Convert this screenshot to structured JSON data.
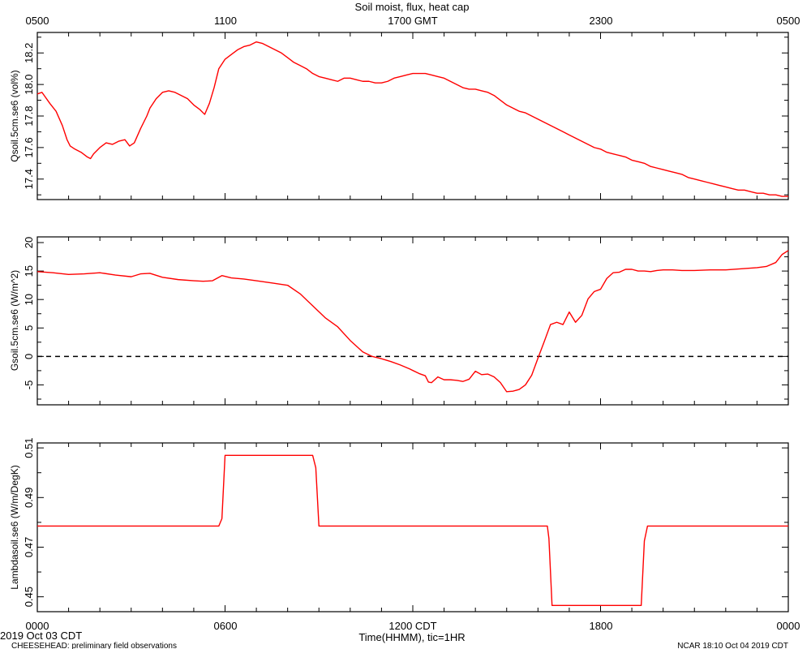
{
  "title": "Soil moist, flux, heat cap",
  "top_axis": {
    "tick_labels": [
      "0500",
      "1100",
      "1700 GMT",
      "2300",
      "0500"
    ],
    "tick_hours": [
      0,
      6,
      12,
      18,
      24
    ]
  },
  "bottom_axis": {
    "tick_labels": [
      "0000",
      "0600",
      "1200 CDT",
      "1800",
      "0000"
    ],
    "tick_hours": [
      0,
      6,
      12,
      18,
      24
    ],
    "label": "Time(HHMM), tic=1HR"
  },
  "footer": {
    "date": "2019 Oct 03 CDT",
    "project": "CHEESEHEAD: preliminary field observations",
    "stamp": "NCAR 18:10 Oct 04 2019 CDT"
  },
  "colors": {
    "series": "#ff0000",
    "axes": "#000000",
    "zero_line": "#000000"
  },
  "chart_data": [
    {
      "type": "line",
      "ylabel": "Qsoil.5cm.se6 (vol%)",
      "xlim": [
        0,
        24
      ],
      "ylim": [
        17.27,
        18.33
      ],
      "yticks": [
        17.4,
        17.6,
        17.8,
        18.0,
        18.2
      ],
      "ytick_labels": [
        "17.4",
        "17.6",
        "17.8",
        "18.0",
        "18.2"
      ],
      "series": [
        {
          "x": [
            0,
            0.15,
            0.4,
            0.6,
            0.8,
            0.95,
            1.05,
            1.2,
            1.4,
            1.6,
            1.7,
            1.8,
            2.0,
            2.2,
            2.4,
            2.6,
            2.8,
            2.95,
            3.1,
            3.3,
            3.5,
            3.6,
            3.8,
            4.0,
            4.2,
            4.4,
            4.6,
            4.8,
            5.0,
            5.2,
            5.35,
            5.5,
            5.65,
            5.8,
            6.0,
            6.2,
            6.4,
            6.6,
            6.8,
            7.0,
            7.2,
            7.4,
            7.6,
            7.8,
            8.0,
            8.2,
            8.4,
            8.6,
            8.8,
            9.0,
            9.2,
            9.4,
            9.6,
            9.8,
            10.0,
            10.2,
            10.4,
            10.6,
            10.8,
            11.0,
            11.2,
            11.4,
            11.6,
            11.8,
            12.0,
            12.2,
            12.4,
            12.6,
            12.8,
            13.0,
            13.2,
            13.4,
            13.6,
            13.8,
            14.0,
            14.2,
            14.4,
            14.6,
            14.8,
            15.0,
            15.2,
            15.4,
            15.6,
            15.8,
            16.0,
            16.2,
            16.4,
            16.6,
            16.8,
            17.0,
            17.2,
            17.4,
            17.6,
            17.8,
            18.0,
            18.2,
            18.4,
            18.6,
            18.8,
            19.0,
            19.2,
            19.4,
            19.6,
            19.8,
            20.0,
            20.2,
            20.4,
            20.6,
            20.8,
            21.0,
            21.2,
            21.4,
            21.6,
            21.8,
            22.0,
            22.2,
            22.4,
            22.6,
            22.8,
            23.0,
            23.2,
            23.4,
            23.6,
            23.8,
            24.0
          ],
          "values": [
            17.94,
            17.95,
            17.88,
            17.83,
            17.74,
            17.65,
            17.61,
            17.59,
            17.57,
            17.54,
            17.53,
            17.56,
            17.6,
            17.63,
            17.62,
            17.64,
            17.65,
            17.61,
            17.63,
            17.72,
            17.8,
            17.85,
            17.91,
            17.95,
            17.96,
            17.95,
            17.93,
            17.91,
            17.87,
            17.84,
            17.81,
            17.88,
            17.98,
            18.1,
            18.16,
            18.19,
            18.22,
            18.24,
            18.25,
            18.27,
            18.26,
            18.24,
            18.22,
            18.2,
            18.17,
            18.14,
            18.12,
            18.1,
            18.07,
            18.05,
            18.04,
            18.03,
            18.02,
            18.04,
            18.04,
            18.03,
            18.02,
            18.02,
            18.01,
            18.01,
            18.02,
            18.04,
            18.05,
            18.06,
            18.07,
            18.07,
            18.07,
            18.06,
            18.05,
            18.04,
            18.02,
            18.0,
            17.98,
            17.97,
            17.97,
            17.96,
            17.95,
            17.93,
            17.9,
            17.87,
            17.85,
            17.83,
            17.82,
            17.8,
            17.78,
            17.76,
            17.74,
            17.72,
            17.7,
            17.68,
            17.66,
            17.64,
            17.62,
            17.6,
            17.59,
            17.57,
            17.56,
            17.55,
            17.54,
            17.52,
            17.51,
            17.5,
            17.48,
            17.47,
            17.46,
            17.45,
            17.44,
            17.43,
            17.41,
            17.4,
            17.39,
            17.38,
            17.37,
            17.36,
            17.35,
            17.34,
            17.33,
            17.33,
            17.32,
            17.31,
            17.31,
            17.3,
            17.3,
            17.29,
            17.29
          ]
        }
      ]
    },
    {
      "type": "line",
      "ylabel": "Gsoil.5cm.se6 (W/m^2)",
      "xlim": [
        0,
        24
      ],
      "ylim": [
        -8.5,
        21
      ],
      "yticks": [
        -5,
        0,
        5,
        10,
        15,
        20
      ],
      "ytick_labels": [
        "-5",
        "0",
        "5",
        "10",
        "15",
        "20"
      ],
      "zero_line": true,
      "series": [
        {
          "x": [
            0,
            0.5,
            1.0,
            1.5,
            2.0,
            2.5,
            3.0,
            3.3,
            3.6,
            4.0,
            4.5,
            5.0,
            5.3,
            5.6,
            5.9,
            6.2,
            6.6,
            7.0,
            7.5,
            8.0,
            8.4,
            8.8,
            9.2,
            9.6,
            10.0,
            10.4,
            10.7,
            11.0,
            11.3,
            11.6,
            11.9,
            12.2,
            12.4,
            12.5,
            12.6,
            12.8,
            13.0,
            13.2,
            13.4,
            13.6,
            13.8,
            14.0,
            14.2,
            14.4,
            14.6,
            14.8,
            15.0,
            15.2,
            15.4,
            15.6,
            15.8,
            16.0,
            16.2,
            16.4,
            16.6,
            16.8,
            17.0,
            17.2,
            17.4,
            17.6,
            17.8,
            18.0,
            18.2,
            18.4,
            18.6,
            18.8,
            19.0,
            19.2,
            19.4,
            19.6,
            19.8,
            20.0,
            20.3,
            20.6,
            21.0,
            21.5,
            22.0,
            22.5,
            23.0,
            23.3,
            23.6,
            23.8,
            24.0
          ],
          "values": [
            14.9,
            14.7,
            14.4,
            14.5,
            14.7,
            14.3,
            14.0,
            14.5,
            14.6,
            13.9,
            13.5,
            13.3,
            13.2,
            13.3,
            14.2,
            13.8,
            13.6,
            13.3,
            12.9,
            12.5,
            11.0,
            8.9,
            6.8,
            5.2,
            2.8,
            0.8,
            0.0,
            -0.4,
            -0.9,
            -1.5,
            -2.2,
            -3.0,
            -3.4,
            -4.5,
            -4.6,
            -3.6,
            -4.1,
            -4.1,
            -4.2,
            -4.4,
            -4.0,
            -2.6,
            -3.2,
            -3.1,
            -3.6,
            -4.6,
            -6.2,
            -6.1,
            -5.8,
            -5.0,
            -3.3,
            -0.3,
            2.6,
            5.6,
            6.0,
            5.6,
            7.8,
            6.0,
            7.2,
            10.1,
            11.4,
            11.8,
            13.7,
            14.7,
            14.8,
            15.3,
            15.3,
            15.0,
            15.0,
            14.9,
            15.1,
            15.2,
            15.2,
            15.1,
            15.1,
            15.2,
            15.2,
            15.4,
            15.6,
            15.8,
            16.5,
            17.9,
            18.6
          ]
        }
      ]
    },
    {
      "type": "line",
      "ylabel": "Lambdasoil.se6 (W/m/DegK)",
      "xlim": [
        0,
        24
      ],
      "ylim": [
        0.444,
        0.512
      ],
      "yticks": [
        0.45,
        0.47,
        0.49,
        0.51
      ],
      "ytick_labels": [
        "0.45",
        "0.47",
        "0.49",
        "0.51"
      ],
      "series": [
        {
          "x": [
            0,
            5.8,
            5.9,
            6.0,
            8.8,
            8.9,
            9.0,
            16.3,
            16.35,
            16.45,
            19.3,
            19.4,
            19.5,
            24.0
          ],
          "values": [
            0.4785,
            0.4785,
            0.4815,
            0.507,
            0.507,
            0.502,
            0.4785,
            0.4785,
            0.4735,
            0.4465,
            0.4465,
            0.4725,
            0.4785,
            0.4785
          ]
        }
      ]
    }
  ]
}
